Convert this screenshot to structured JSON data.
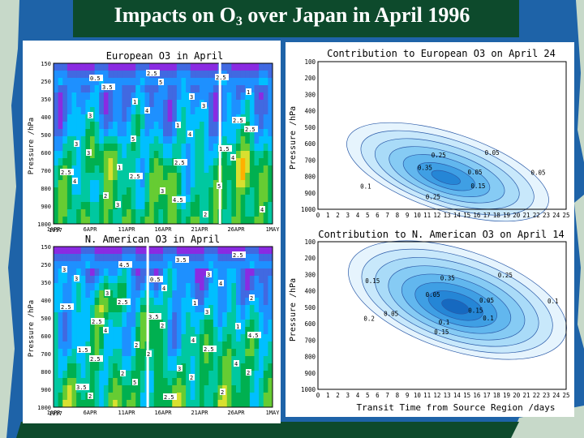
{
  "slide": {
    "title_main": "Impacts on O",
    "title_sub": "3",
    "title_rest": " over Japan in April 1996",
    "colors": {
      "background": "#0d4a2c",
      "ocean": "#1e63a8",
      "land": "#c7d9c9"
    }
  },
  "chart_data": [
    {
      "type": "heatmap",
      "title": "European O3 in April",
      "ylabel": "Pressure /hPa",
      "ytick_labels": [
        "150",
        "250",
        "350",
        "400",
        "500",
        "600",
        "700",
        "800",
        "900",
        "1000"
      ],
      "xtick_labels": [
        "1APR",
        "6APR",
        "11APR",
        "16APR",
        "21APR",
        "26APR",
        "1MAY"
      ],
      "year_label": "1997",
      "marker_day": "24APR",
      "contour_labels": [
        "0.5",
        "1",
        "1",
        "1.5",
        "2.5",
        "2",
        "2.5",
        "3",
        "2.5",
        "3",
        "1",
        "3",
        "2",
        "1",
        "3",
        "5",
        "2.5",
        "5",
        "4",
        "3.5",
        "4",
        "4",
        "4",
        "4",
        "3",
        "5",
        "3",
        "2.5",
        "3",
        "2.5",
        "4.5",
        "2.5"
      ],
      "colorscale": [
        "#8a2be2",
        "#4169e1",
        "#1e90ff",
        "#00bfff",
        "#00c8a0",
        "#00b050",
        "#66cc33",
        "#d8e030",
        "#ffb000",
        "#ff6000",
        "#e01010"
      ]
    },
    {
      "type": "heatmap",
      "title": "N. American O3 in April",
      "ylabel": "Pressure /hPa",
      "ytick_labels": [
        "150",
        "250",
        "350",
        "400",
        "500",
        "600",
        "700",
        "800",
        "900",
        "1000"
      ],
      "xtick_labels": [
        "1APR",
        "6APR",
        "11APR",
        "16APR",
        "21APR",
        "26APR",
        "1MAY"
      ],
      "year_label": "1997",
      "marker_day": "14APR",
      "contour_labels": [
        "0.5",
        "1",
        "1",
        "1.5",
        "2",
        "2.5",
        "3",
        "2",
        "2.5",
        "2",
        "3",
        "2",
        "3",
        "3",
        "3.5",
        "4",
        "4",
        "3.5",
        "4.5",
        "4",
        "3",
        "4.5",
        "2.5",
        "5",
        "3.5",
        "4",
        "2.5",
        "4",
        "2",
        "2",
        "2.5",
        "3",
        "2.5",
        "2",
        "2.5",
        "2",
        "2"
      ]
    },
    {
      "type": "heatmap",
      "title": "Contribution to European O3 on April 24",
      "ylabel": "Pressure /hPa",
      "xlabel": "",
      "ytick_labels": [
        "100",
        "200",
        "300",
        "400",
        "500",
        "600",
        "700",
        "800",
        "900",
        "1000"
      ],
      "xtick_labels": [
        "0",
        "1",
        "2",
        "3",
        "4",
        "5",
        "6",
        "7",
        "8",
        "9",
        "10",
        "11",
        "12",
        "13",
        "14",
        "15",
        "16",
        "17",
        "18",
        "19",
        "20",
        "21",
        "22",
        "23",
        "24",
        "25"
      ],
      "contour_labels": [
        "0.05",
        "0.15",
        "0.25",
        "0.1",
        "0.35",
        "0.25",
        "0.05",
        "0.05"
      ]
    },
    {
      "type": "heatmap",
      "title": "Contribution to N. American O3 on April 14",
      "ylabel": "Pressure /hPa",
      "xlabel": "Transit Time from Source Region /days",
      "ytick_labels": [
        "100",
        "200",
        "300",
        "400",
        "500",
        "600",
        "700",
        "800",
        "900",
        "1000"
      ],
      "xtick_labels": [
        "0",
        "1",
        "2",
        "3",
        "4",
        "5",
        "6",
        "7",
        "8",
        "9",
        "10",
        "11",
        "12",
        "13",
        "14",
        "15",
        "16",
        "17",
        "18",
        "19",
        "20",
        "21",
        "22",
        "23",
        "24",
        "25"
      ],
      "contour_labels": [
        "0.05",
        "0.1",
        "0.15",
        "0.2",
        "0.05",
        "0.35",
        "0.25",
        "0.1",
        "0.15",
        "0.1",
        "0.05",
        "0.15"
      ]
    }
  ]
}
